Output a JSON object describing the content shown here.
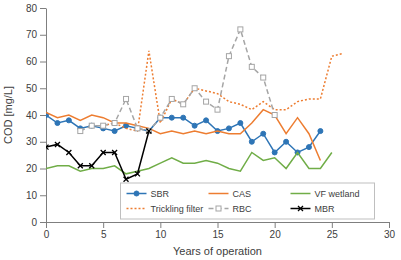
{
  "chart_data": {
    "type": "line",
    "x_label": "Years of operation",
    "y_label": "COD [mg/L]",
    "x": [
      0,
      1,
      2,
      3,
      4,
      5,
      6,
      7,
      8,
      9,
      10,
      11,
      12,
      13,
      14,
      15,
      16,
      17,
      18,
      19,
      20,
      21,
      22,
      23,
      24,
      25,
      26
    ],
    "xlim": [
      0,
      30
    ],
    "xticks": [
      0,
      5,
      10,
      15,
      20,
      25,
      30
    ],
    "ylim": [
      0,
      80
    ],
    "yticks": [
      0,
      10,
      20,
      30,
      40,
      50,
      60,
      70,
      80
    ],
    "grid": false,
    "legend": "bottom",
    "series": [
      {
        "name": "SBR",
        "color": "#2e75b6",
        "marker": "circle",
        "line_style": "solid",
        "values": [
          40,
          37,
          38,
          35,
          36,
          35,
          34,
          36,
          35,
          34,
          39,
          39,
          39,
          36,
          38,
          34,
          35,
          37,
          30,
          33,
          26,
          30,
          26,
          28,
          34,
          null,
          null
        ]
      },
      {
        "name": "CAS",
        "color": "#ed7d31",
        "marker": "none",
        "line_style": "solid",
        "values": [
          41,
          39,
          40,
          38,
          40,
          39,
          37,
          37,
          36,
          35,
          33,
          34,
          33,
          34,
          33,
          34,
          33,
          33,
          37,
          42,
          40,
          33,
          39,
          33,
          23,
          null,
          null
        ]
      },
      {
        "name": "VF wetland",
        "color": "#70ad47",
        "marker": "none",
        "line_style": "solid",
        "values": [
          20,
          21,
          21,
          19,
          20,
          20,
          21,
          18,
          19,
          20,
          22,
          24,
          22,
          22,
          23,
          22,
          20,
          19,
          26,
          23,
          24,
          20,
          26,
          20,
          20,
          26,
          null
        ]
      },
      {
        "name": "Trickling filter",
        "color": "#ed7d31",
        "marker": "none",
        "line_style": "dotted",
        "values": [
          null,
          null,
          null,
          null,
          null,
          36,
          37,
          35,
          34,
          64,
          37,
          46,
          44,
          50,
          49,
          48,
          45,
          44,
          42,
          45,
          42,
          42,
          45,
          46,
          46,
          62,
          63
        ]
      },
      {
        "name": "RBC",
        "color": "#a5a5a5",
        "marker": "square",
        "line_style": "dashed",
        "values": [
          null,
          null,
          null,
          34,
          36,
          36,
          37,
          46,
          35,
          34,
          39,
          46,
          44,
          50,
          45,
          42,
          62,
          72,
          58,
          54,
          40,
          null,
          null,
          null,
          null,
          null,
          null
        ]
      },
      {
        "name": "MBR",
        "color": "#000000",
        "marker": "x",
        "line_style": "solid",
        "values": [
          28,
          29,
          26,
          21,
          21,
          26,
          26,
          16,
          18,
          34,
          null,
          null,
          null,
          null,
          null,
          null,
          null,
          null,
          null,
          null,
          null,
          null,
          null,
          null,
          null,
          null,
          null
        ]
      }
    ]
  }
}
